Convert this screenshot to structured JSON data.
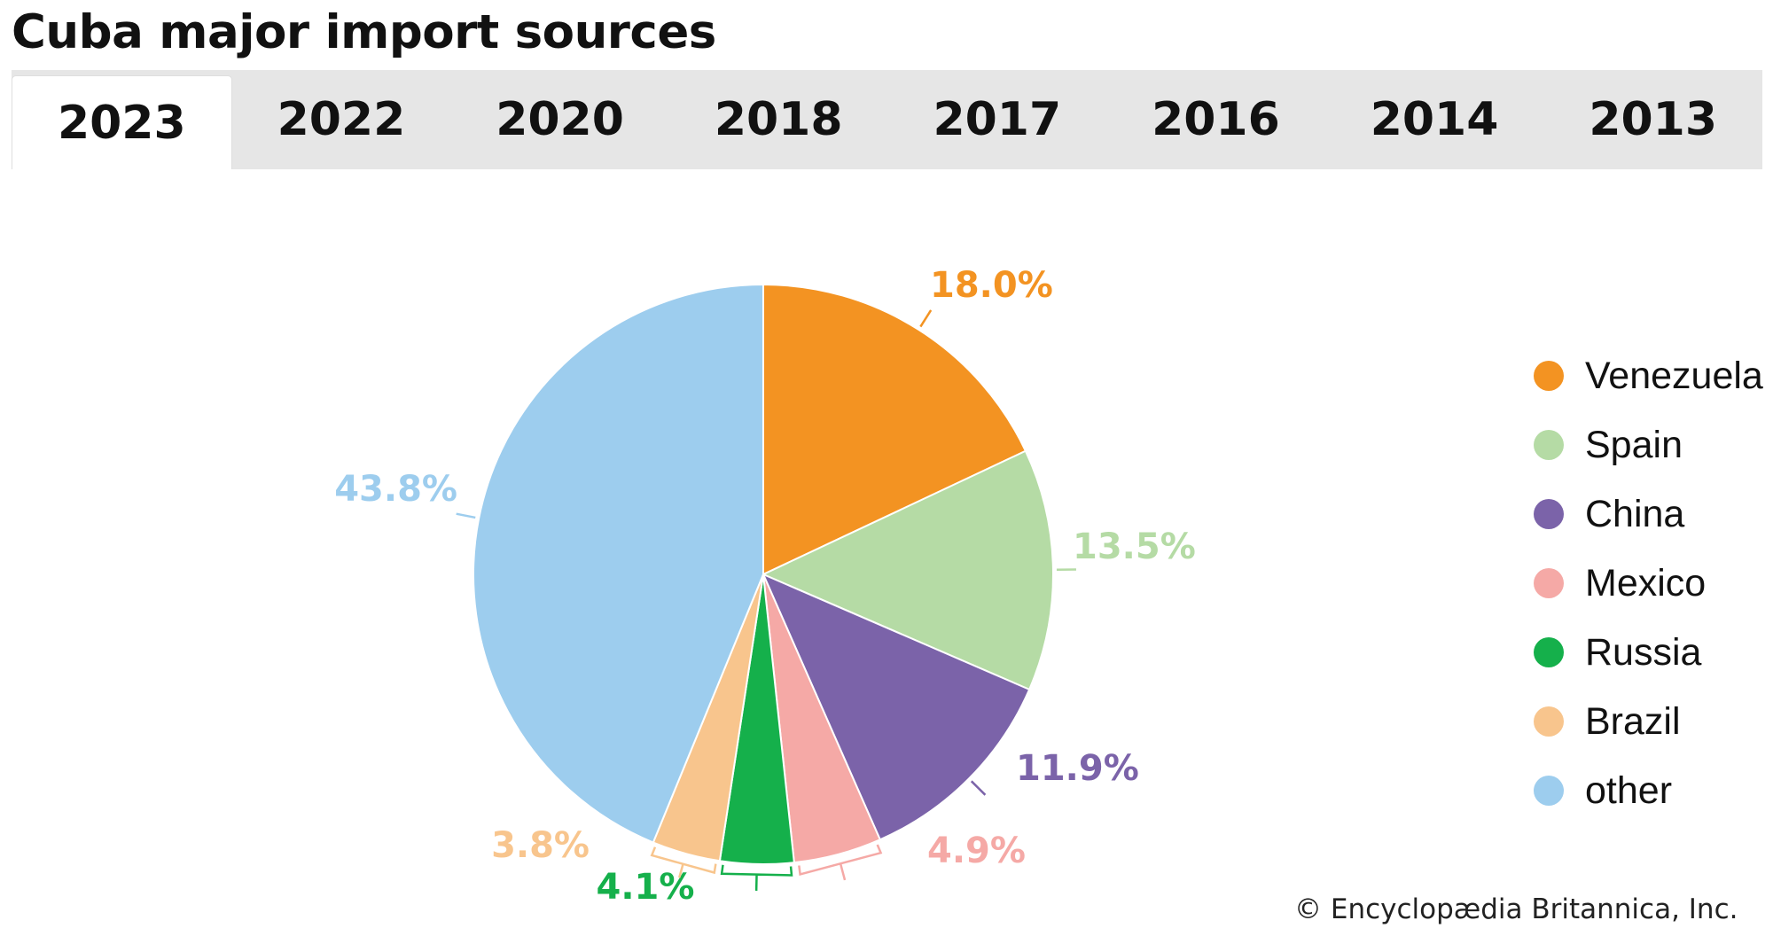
{
  "title": "Cuba major import sources",
  "tabs": [
    {
      "label": "2023",
      "active": true
    },
    {
      "label": "2022",
      "active": false
    },
    {
      "label": "2020",
      "active": false
    },
    {
      "label": "2018",
      "active": false
    },
    {
      "label": "2017",
      "active": false
    },
    {
      "label": "2016",
      "active": false
    },
    {
      "label": "2014",
      "active": false
    },
    {
      "label": "2013",
      "active": false
    }
  ],
  "chart_data": {
    "type": "pie",
    "title": "",
    "start": "12 o'clock",
    "direction": "clockwise",
    "slices": [
      {
        "name": "Venezuela",
        "value": 18.0,
        "label": "18.0%",
        "color": "#f39322"
      },
      {
        "name": "Spain",
        "value": 13.5,
        "label": "13.5%",
        "color": "#b5dba5"
      },
      {
        "name": "China",
        "value": 11.9,
        "label": "11.9%",
        "color": "#7b63a9"
      },
      {
        "name": "Mexico",
        "value": 4.9,
        "label": "4.9%",
        "color": "#f5a9a6"
      },
      {
        "name": "Russia",
        "value": 4.1,
        "label": "4.1%",
        "color": "#15b04b"
      },
      {
        "name": "Brazil",
        "value": 3.8,
        "label": "3.8%",
        "color": "#f8c58d"
      },
      {
        "name": "other",
        "value": 43.8,
        "label": "43.8%",
        "color": "#9dcdee"
      }
    ],
    "legend_position": "right"
  },
  "copyright": "© Encyclopædia Britannica, Inc."
}
